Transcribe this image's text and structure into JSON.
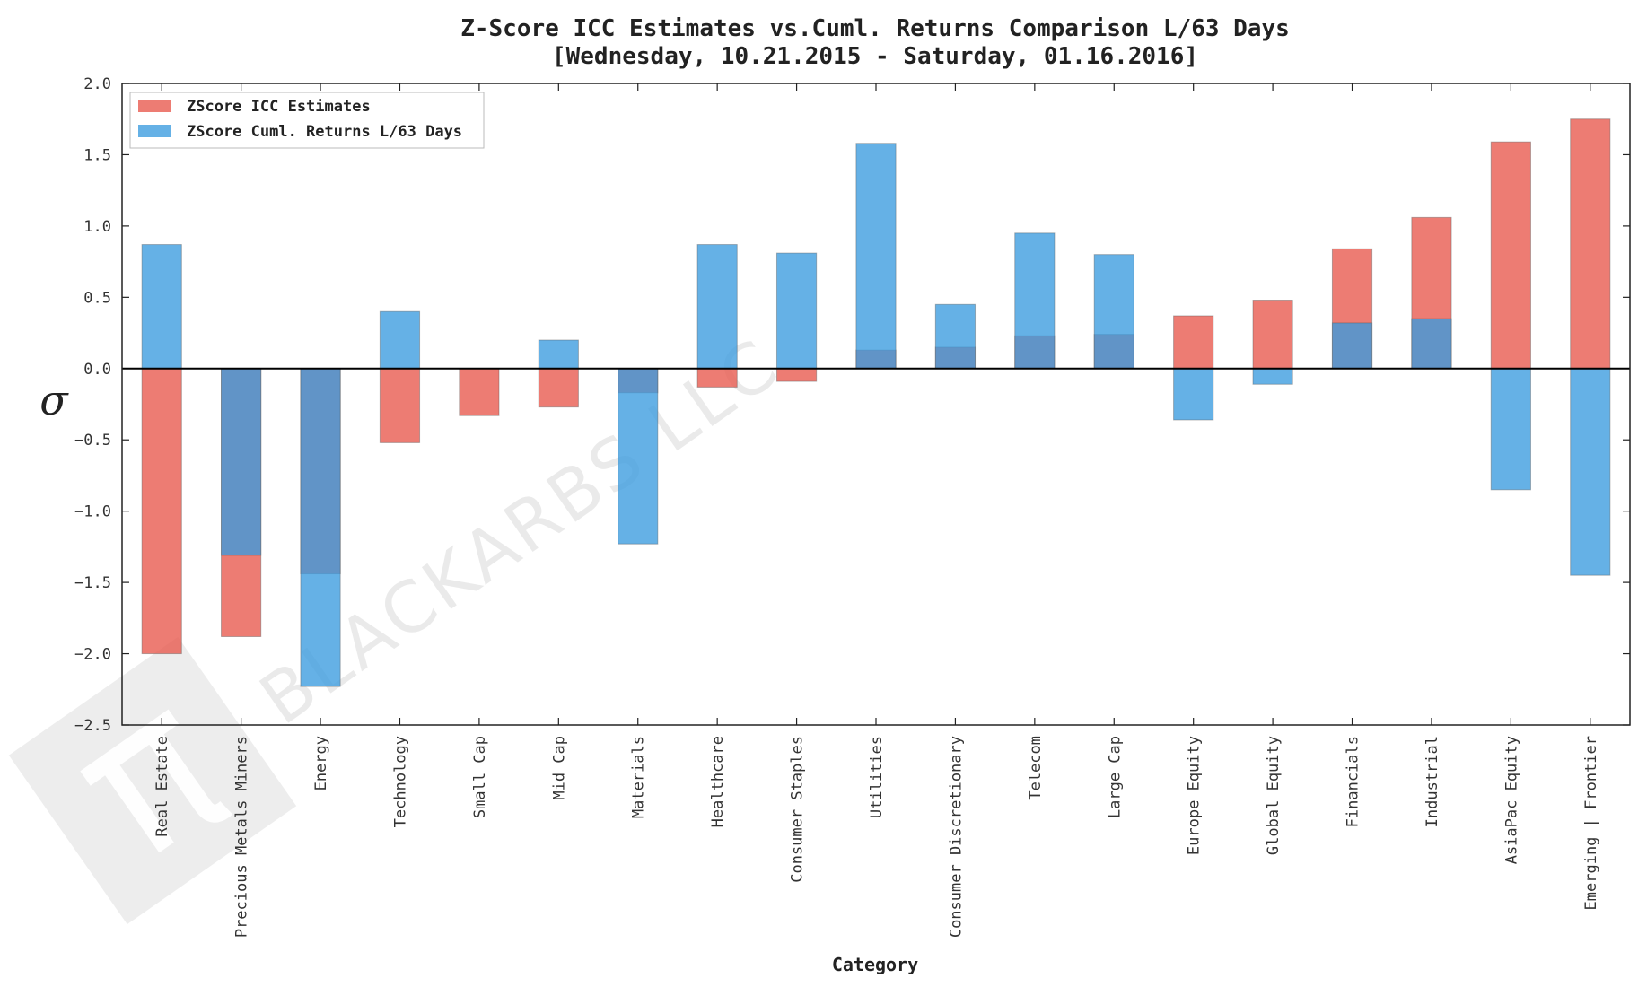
{
  "chart_data": {
    "type": "bar",
    "title": "Z-Score ICC Estimates vs.Cuml. Returns Comparison L/63 Days",
    "subtitle": "[Wednesday, 10.21.2015 - Saturday, 01.16.2016]",
    "xlabel": "Category",
    "ylabel": "σ",
    "ylim": [
      -2.5,
      2.0
    ],
    "yticks": [
      2.0,
      1.5,
      1.0,
      0.5,
      0.0,
      -0.5,
      -1.0,
      -1.5,
      -2.0,
      -2.5
    ],
    "ytick_labels": [
      "2.0",
      "1.5",
      "1.0",
      "0.5",
      "0.0",
      "−0.5",
      "−1.0",
      "−1.5",
      "−2.0",
      "−2.5"
    ],
    "grid": false,
    "legend_position": "top-left",
    "overlay": true,
    "categories": [
      "Real Estate",
      "Precious Metals Miners",
      "Energy",
      "Technology",
      "Small Cap",
      "Mid Cap",
      "Materials",
      "Healthcare",
      "Consumer Staples",
      "Utilities",
      "Consumer Discretionary",
      "Telecom",
      "Large Cap",
      "Europe Equity",
      "Global Equity",
      "Financials",
      "Industrial",
      "AsiaPac Equity",
      "Emerging | Frontier"
    ],
    "series": [
      {
        "name": "ZScore ICC Estimates",
        "color": "#e8574b",
        "values": [
          -2.0,
          -1.88,
          -1.44,
          -0.52,
          -0.33,
          -0.27,
          -0.17,
          -0.13,
          -0.09,
          0.13,
          0.15,
          0.23,
          0.24,
          0.37,
          0.48,
          0.84,
          1.06,
          1.59,
          1.75
        ]
      },
      {
        "name": "ZScore Cuml. Returns L/63 Days",
        "color": "#3a9bdf",
        "values": [
          0.87,
          -1.31,
          -2.23,
          0.4,
          0.0,
          0.2,
          -1.23,
          0.87,
          0.81,
          1.58,
          0.45,
          0.95,
          0.8,
          -0.36,
          -0.11,
          0.32,
          0.35,
          -0.85,
          -1.45
        ]
      }
    ],
    "overlap_color": "#5c8ec3",
    "watermark": "BLACKARBS LLC"
  }
}
